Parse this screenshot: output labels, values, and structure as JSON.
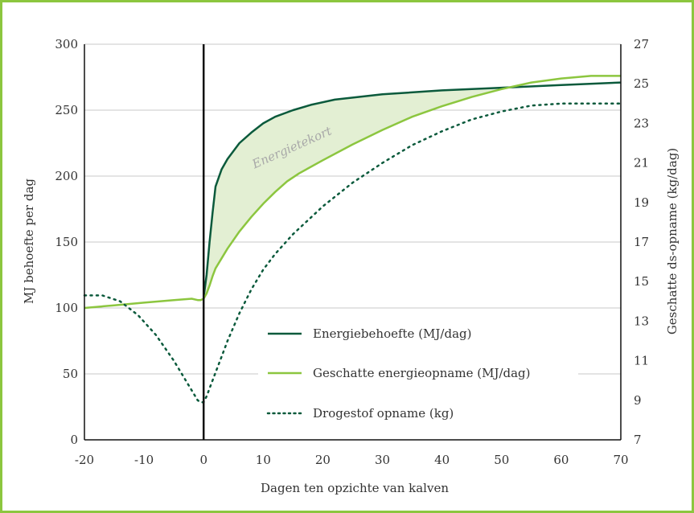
{
  "colors": {
    "frame": "#8cc63f",
    "grid": "#c8c8c8",
    "axis": "#111111",
    "energy_need": "#0b5a3c",
    "energy_intake": "#8cc63f",
    "dm_intake": "#0b5a3c",
    "deficit_fill": "#e3efd3"
  },
  "chart_data": {
    "type": "line",
    "xlabel": "Dagen ten opzichte van kalven",
    "ylabel": "MJ behoefte per dag",
    "y2label": "Geschatte ds-opname (kg/dag)",
    "xlim": [
      -20,
      70
    ],
    "ylim": [
      0,
      300
    ],
    "y2lim": [
      7,
      27
    ],
    "x_ticks": [
      -20,
      -10,
      0,
      10,
      20,
      30,
      40,
      50,
      60,
      70
    ],
    "y_ticks": [
      0,
      50,
      100,
      150,
      200,
      250,
      300
    ],
    "y2_ticks": [
      7,
      9,
      11,
      13,
      15,
      17,
      19,
      21,
      23,
      25,
      27
    ],
    "grid": "horizontal",
    "legend_position": "bottom-center",
    "annotation": "Energietekort",
    "series": [
      {
        "name": "Energiebehoefte (MJ/dag)",
        "axis": "left",
        "style": "solid",
        "x": [
          0,
          0.5,
          1,
          1.5,
          2,
          3,
          4,
          6,
          8,
          10,
          12,
          15,
          18,
          22,
          30,
          40,
          50,
          60,
          70
        ],
        "y": [
          108,
          125,
          150,
          172,
          192,
          205,
          213,
          225,
          233,
          240,
          245,
          250,
          254,
          258,
          262,
          265,
          267,
          269,
          271
        ]
      },
      {
        "name": "Geschatte energieopname (MJ/dag)",
        "axis": "left",
        "style": "solid",
        "x": [
          -20,
          -15,
          -10,
          -5,
          -2,
          -1,
          -0.5,
          0,
          0.5,
          1,
          1.5,
          2,
          4,
          6,
          8,
          10,
          12,
          14,
          16,
          20,
          25,
          30,
          35,
          40,
          45,
          50,
          55,
          60,
          65,
          70
        ],
        "y": [
          100,
          102,
          104,
          106,
          107,
          106,
          106,
          107,
          111,
          117,
          124,
          130,
          145,
          158,
          169,
          179,
          188,
          196,
          202,
          212,
          224,
          235,
          245,
          253,
          260,
          266,
          271,
          274,
          276,
          276
        ]
      },
      {
        "name": "Drogestof opname (kg)",
        "axis": "right",
        "style": "dotted",
        "x": [
          -20,
          -17,
          -14,
          -11,
          -8,
          -5,
          -3,
          -2,
          -1,
          -0.5,
          0,
          0.5,
          1,
          2,
          3,
          4,
          6,
          8,
          10,
          12,
          15,
          20,
          25,
          30,
          35,
          40,
          45,
          50,
          55,
          60,
          65,
          70
        ],
        "y": [
          14.3,
          14.3,
          14.0,
          13.3,
          12.3,
          11.0,
          10.0,
          9.5,
          9.0,
          8.9,
          8.9,
          9.2,
          9.6,
          10.4,
          11.2,
          12.0,
          13.4,
          14.6,
          15.6,
          16.4,
          17.4,
          18.8,
          20.0,
          21.0,
          21.9,
          22.6,
          23.2,
          23.6,
          23.9,
          24.0,
          24.0,
          24.0
        ]
      }
    ]
  }
}
